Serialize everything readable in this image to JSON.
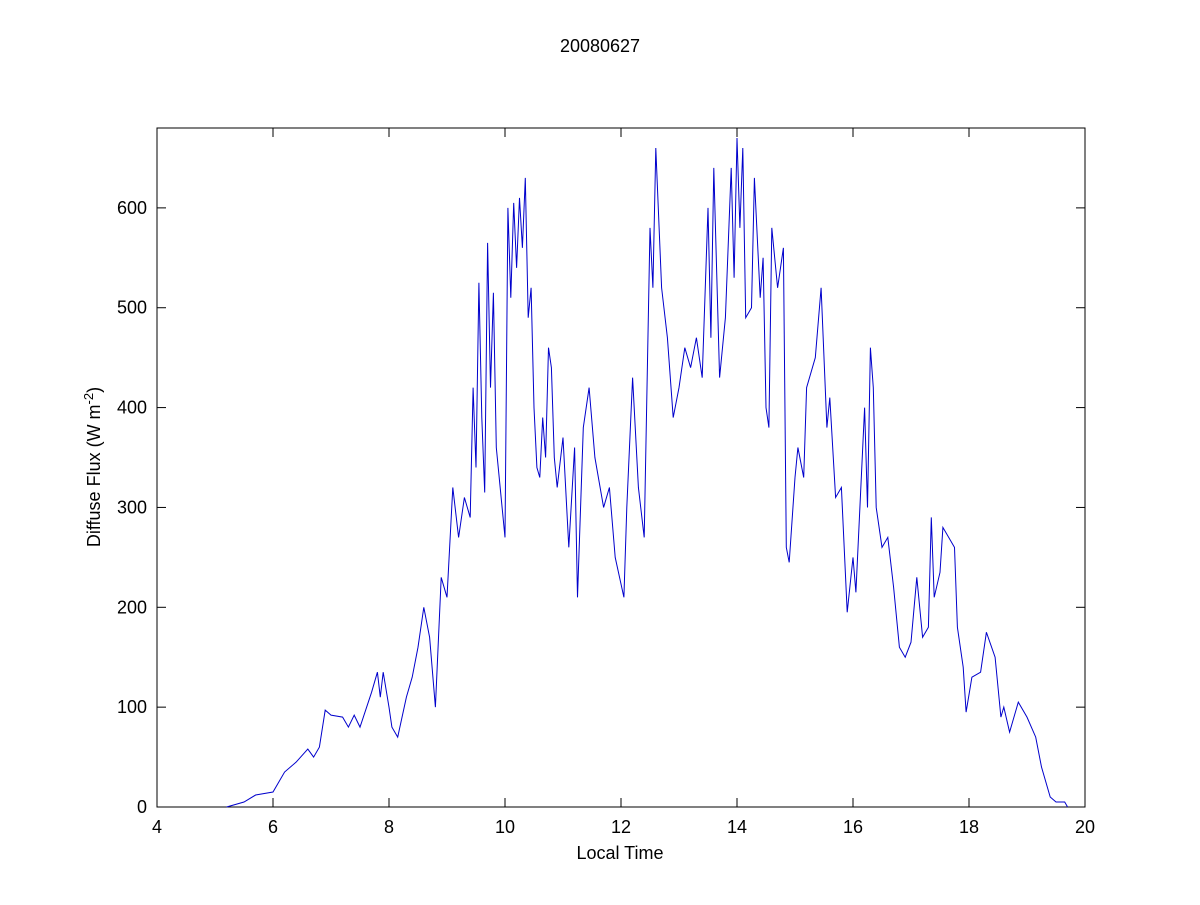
{
  "chart_data": {
    "type": "line",
    "title": "20080627",
    "xlabel": "Local Time",
    "ylabel_parts": [
      "Diffuse Flux (W m",
      "-2",
      ")"
    ],
    "xlim": [
      4,
      20
    ],
    "ylim": [
      0,
      680
    ],
    "xticks": [
      4,
      6,
      8,
      10,
      12,
      14,
      16,
      18,
      20
    ],
    "yticks": [
      0,
      100,
      200,
      300,
      400,
      500,
      600
    ],
    "series": [
      {
        "color": "#0000cc",
        "x": [
          5.2,
          5.5,
          5.7,
          6.0,
          6.2,
          6.4,
          6.6,
          6.7,
          6.8,
          6.9,
          7.0,
          7.2,
          7.3,
          7.4,
          7.5,
          7.7,
          7.8,
          7.85,
          7.9,
          8.0,
          8.05,
          8.15,
          8.3,
          8.4,
          8.5,
          8.6,
          8.7,
          8.8,
          8.9,
          9.0,
          9.1,
          9.2,
          9.3,
          9.4,
          9.45,
          9.5,
          9.55,
          9.6,
          9.65,
          9.7,
          9.75,
          9.8,
          9.85,
          9.95,
          10.0,
          10.05,
          10.1,
          10.15,
          10.2,
          10.25,
          10.3,
          10.35,
          10.4,
          10.45,
          10.5,
          10.55,
          10.6,
          10.65,
          10.7,
          10.75,
          10.8,
          10.85,
          10.9,
          11.0,
          11.1,
          11.2,
          11.25,
          11.35,
          11.45,
          11.55,
          11.7,
          11.8,
          11.9,
          12.05,
          12.1,
          12.2,
          12.3,
          12.4,
          12.5,
          12.55,
          12.6,
          12.7,
          12.8,
          12.9,
          13.0,
          13.1,
          13.2,
          13.3,
          13.4,
          13.5,
          13.55,
          13.6,
          13.7,
          13.8,
          13.9,
          13.95,
          14.0,
          14.05,
          14.1,
          14.15,
          14.25,
          14.3,
          14.4,
          14.45,
          14.5,
          14.55,
          14.6,
          14.7,
          14.8,
          14.85,
          14.9,
          15.0,
          15.05,
          15.15,
          15.2,
          15.35,
          15.45,
          15.55,
          15.6,
          15.7,
          15.8,
          15.9,
          16.0,
          16.05,
          16.2,
          16.25,
          16.3,
          16.35,
          16.4,
          16.5,
          16.6,
          16.7,
          16.8,
          16.9,
          17.0,
          17.1,
          17.2,
          17.3,
          17.35,
          17.4,
          17.5,
          17.55,
          17.75,
          17.8,
          17.9,
          17.95,
          18.05,
          18.2,
          18.3,
          18.45,
          18.55,
          18.6,
          18.7,
          18.85,
          19.0,
          19.15,
          19.25,
          19.4,
          19.5,
          19.65,
          19.7
        ],
        "values": [
          0,
          5,
          12,
          15,
          35,
          45,
          58,
          50,
          60,
          97,
          92,
          90,
          80,
          92,
          80,
          115,
          135,
          110,
          135,
          100,
          80,
          70,
          110,
          130,
          160,
          200,
          170,
          100,
          230,
          210,
          320,
          270,
          310,
          290,
          420,
          340,
          525,
          390,
          315,
          565,
          420,
          515,
          360,
          300,
          270,
          600,
          510,
          605,
          540,
          610,
          560,
          630,
          490,
          520,
          400,
          340,
          330,
          390,
          350,
          460,
          440,
          350,
          320,
          370,
          260,
          360,
          210,
          380,
          420,
          350,
          300,
          320,
          250,
          210,
          300,
          430,
          320,
          270,
          580,
          520,
          660,
          520,
          470,
          390,
          420,
          460,
          440,
          470,
          430,
          600,
          470,
          640,
          430,
          490,
          640,
          530,
          670,
          580,
          660,
          490,
          500,
          630,
          510,
          550,
          400,
          380,
          580,
          520,
          560,
          260,
          245,
          330,
          360,
          330,
          420,
          450,
          520,
          380,
          410,
          310,
          320,
          195,
          250,
          215,
          400,
          300,
          460,
          420,
          300,
          260,
          270,
          220,
          160,
          150,
          165,
          230,
          170,
          180,
          290,
          210,
          235,
          280,
          260,
          180,
          140,
          95,
          130,
          135,
          175,
          150,
          90,
          100,
          75,
          105,
          90,
          70,
          40,
          10,
          5,
          5,
          0
        ]
      }
    ]
  }
}
